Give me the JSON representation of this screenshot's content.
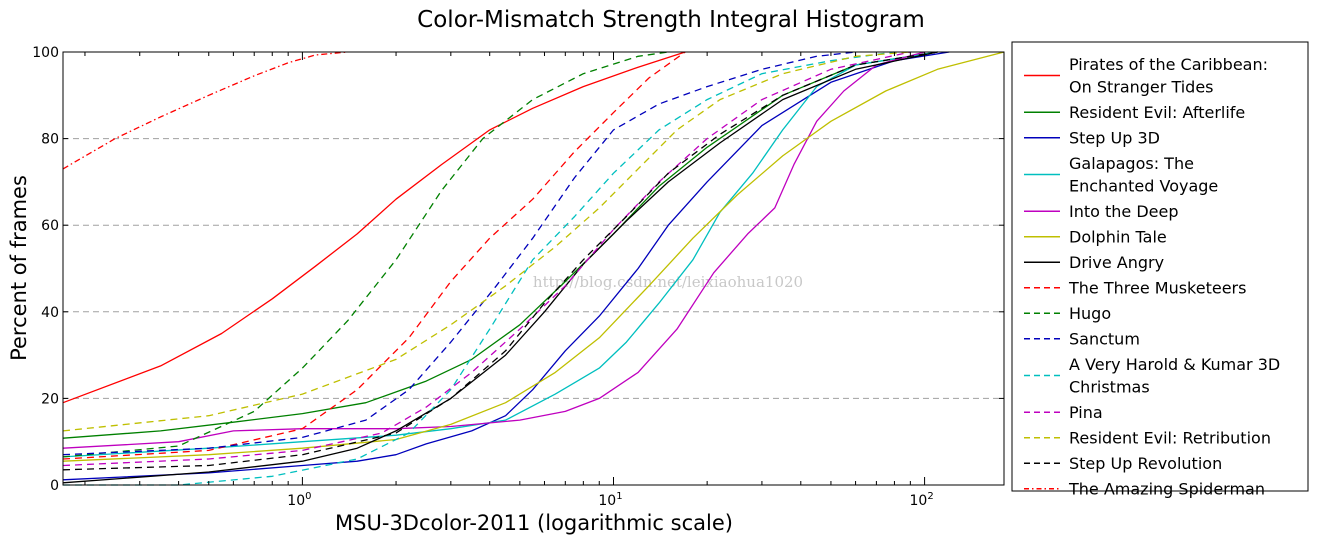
{
  "chart_data": {
    "type": "line",
    "title": "Color-Mismatch Strength Integral Histogram",
    "xlabel": "MSU-3Dcolor-2011 (logarithmic scale)",
    "ylabel": "Percent of frames",
    "x_scale": "log",
    "xlim": [
      0.17,
      180
    ],
    "ylim": [
      0,
      100
    ],
    "x_ticks": [
      {
        "value": 1,
        "label_base": "10",
        "label_exp": "0"
      },
      {
        "value": 10,
        "label_base": "10",
        "label_exp": "1"
      },
      {
        "value": 100,
        "label_base": "10",
        "label_exp": "2"
      }
    ],
    "y_ticks": [
      0,
      20,
      40,
      60,
      80,
      100
    ],
    "grid": "horizontal dashed",
    "legend_position": "right, outside plot",
    "watermark": "http://blog.csdn.net/leixiaohua1020",
    "series": [
      {
        "name": "Pirates of the Caribbean: On Stranger Tides",
        "legend_lines": [
          "Pirates of the Caribbean:",
          "On Stranger Tides"
        ],
        "color": "#ff0000",
        "dash": "solid",
        "points": [
          [
            0.17,
            19
          ],
          [
            0.35,
            27.5
          ],
          [
            0.55,
            35
          ],
          [
            0.8,
            43
          ],
          [
            1.1,
            50.5
          ],
          [
            1.5,
            58
          ],
          [
            2.0,
            66
          ],
          [
            2.8,
            74
          ],
          [
            4.0,
            82
          ],
          [
            5.5,
            87
          ],
          [
            8.0,
            92
          ],
          [
            12,
            96.5
          ],
          [
            17,
            100
          ]
        ]
      },
      {
        "name": "Resident Evil: Afterlife",
        "legend_lines": [
          "Resident Evil: Afterlife"
        ],
        "color": "#008000",
        "dash": "solid",
        "points": [
          [
            0.17,
            10.8
          ],
          [
            0.35,
            12.5
          ],
          [
            0.6,
            14.5
          ],
          [
            1.0,
            16.5
          ],
          [
            1.6,
            19
          ],
          [
            2.5,
            24
          ],
          [
            3.5,
            29
          ],
          [
            5.0,
            37
          ],
          [
            7.0,
            47
          ],
          [
            10,
            58
          ],
          [
            14,
            69
          ],
          [
            20,
            78
          ],
          [
            35,
            90
          ],
          [
            60,
            97
          ],
          [
            110,
            100
          ]
        ]
      },
      {
        "name": "Step Up 3D",
        "legend_lines": [
          "Step Up 3D"
        ],
        "color": "#0000bb",
        "dash": "solid",
        "points": [
          [
            0.17,
            1.2
          ],
          [
            0.5,
            2.8
          ],
          [
            1.0,
            4.5
          ],
          [
            1.5,
            5.5
          ],
          [
            2.0,
            7.0
          ],
          [
            2.5,
            9.5
          ],
          [
            3.5,
            12.5
          ],
          [
            4.5,
            16
          ],
          [
            5.5,
            22
          ],
          [
            7.0,
            31
          ],
          [
            9.0,
            39
          ],
          [
            12,
            50
          ],
          [
            15,
            60
          ],
          [
            20,
            70
          ],
          [
            30,
            83
          ],
          [
            50,
            93
          ],
          [
            80,
            98
          ],
          [
            120,
            100
          ]
        ]
      },
      {
        "name": "Galapagos: The Enchanted Voyage",
        "legend_lines": [
          "Galapagos: The",
          "Enchanted Voyage"
        ],
        "color": "#00bfbf",
        "dash": "solid",
        "points": [
          [
            0.17,
            6.5
          ],
          [
            0.5,
            8.5
          ],
          [
            1.0,
            10
          ],
          [
            2.0,
            11.5
          ],
          [
            3.0,
            13
          ],
          [
            4.5,
            15
          ],
          [
            6.5,
            21
          ],
          [
            9.0,
            27
          ],
          [
            11,
            33
          ],
          [
            14,
            42
          ],
          [
            18,
            52
          ],
          [
            22,
            63
          ],
          [
            28,
            72
          ],
          [
            35,
            82
          ],
          [
            45,
            92
          ],
          [
            60,
            97
          ],
          [
            110,
            100
          ]
        ]
      },
      {
        "name": "Into the Deep",
        "legend_lines": [
          "Into the Deep"
        ],
        "color": "#bf00bf",
        "dash": "solid",
        "points": [
          [
            0.17,
            8.5
          ],
          [
            0.4,
            10
          ],
          [
            0.6,
            12.5
          ],
          [
            1.0,
            13
          ],
          [
            2.0,
            13
          ],
          [
            3.0,
            13.5
          ],
          [
            5.0,
            15
          ],
          [
            7.0,
            17
          ],
          [
            9.0,
            20
          ],
          [
            12,
            26
          ],
          [
            16,
            36
          ],
          [
            21,
            49
          ],
          [
            27,
            58
          ],
          [
            33,
            64
          ],
          [
            38,
            74
          ],
          [
            45,
            84
          ],
          [
            55,
            91
          ],
          [
            70,
            97
          ],
          [
            100,
            100
          ]
        ]
      },
      {
        "name": "Dolphin Tale",
        "legend_lines": [
          "Dolphin Tale"
        ],
        "color": "#bfbf00",
        "dash": "solid",
        "points": [
          [
            0.17,
            5.5
          ],
          [
            0.5,
            7
          ],
          [
            1.0,
            8.5
          ],
          [
            2.0,
            10.5
          ],
          [
            3.0,
            14
          ],
          [
            4.5,
            19
          ],
          [
            6.5,
            26
          ],
          [
            9.0,
            34
          ],
          [
            13,
            46
          ],
          [
            18,
            57
          ],
          [
            25,
            67
          ],
          [
            35,
            76
          ],
          [
            50,
            84
          ],
          [
            75,
            91
          ],
          [
            110,
            96
          ],
          [
            180,
            100
          ]
        ]
      },
      {
        "name": "Drive Angry",
        "legend_lines": [
          "Drive Angry"
        ],
        "color": "#000000",
        "dash": "solid",
        "points": [
          [
            0.17,
            0.5
          ],
          [
            0.5,
            3.0
          ],
          [
            1.0,
            5.5
          ],
          [
            1.5,
            8.5
          ],
          [
            2.0,
            12.5
          ],
          [
            3.0,
            20
          ],
          [
            4.5,
            30
          ],
          [
            6.0,
            40
          ],
          [
            8.0,
            51
          ],
          [
            11,
            61
          ],
          [
            15,
            70
          ],
          [
            22,
            79
          ],
          [
            35,
            89
          ],
          [
            60,
            96
          ],
          [
            110,
            100
          ]
        ]
      },
      {
        "name": "The Three Musketeers",
        "legend_lines": [
          "The Three Musketeers"
        ],
        "color": "#ff0000",
        "dash": "dashed",
        "points": [
          [
            0.17,
            6
          ],
          [
            0.5,
            8
          ],
          [
            1.0,
            13
          ],
          [
            1.5,
            22
          ],
          [
            2.2,
            34
          ],
          [
            3.0,
            47
          ],
          [
            4.0,
            57
          ],
          [
            5.5,
            66
          ],
          [
            7.5,
            77
          ],
          [
            10,
            86
          ],
          [
            13,
            94
          ],
          [
            17,
            100
          ]
        ]
      },
      {
        "name": "Hugo",
        "legend_lines": [
          "Hugo"
        ],
        "color": "#008000",
        "dash": "dashed",
        "points": [
          [
            0.17,
            6.5
          ],
          [
            0.4,
            9
          ],
          [
            0.7,
            17
          ],
          [
            1.0,
            27
          ],
          [
            1.4,
            38
          ],
          [
            2.0,
            52
          ],
          [
            2.8,
            68
          ],
          [
            3.8,
            80
          ],
          [
            5.5,
            89
          ],
          [
            8.0,
            95
          ],
          [
            12,
            99
          ],
          [
            15,
            100
          ]
        ]
      },
      {
        "name": "Sanctum",
        "legend_lines": [
          "Sanctum"
        ],
        "color": "#0000bb",
        "dash": "dashed",
        "points": [
          [
            0.17,
            7
          ],
          [
            0.5,
            8.5
          ],
          [
            1.0,
            11
          ],
          [
            1.6,
            15
          ],
          [
            2.2,
            22
          ],
          [
            3.0,
            33
          ],
          [
            4.2,
            46
          ],
          [
            5.5,
            57
          ],
          [
            7.5,
            71
          ],
          [
            10,
            82
          ],
          [
            14,
            88
          ],
          [
            20,
            92
          ],
          [
            30,
            96
          ],
          [
            45,
            99
          ],
          [
            60,
            100
          ]
        ]
      },
      {
        "name": "A Very Harold & Kumar 3D Christmas",
        "legend_lines": [
          "A Very Harold & Kumar 3D",
          "Christmas"
        ],
        "color": "#00bfbf",
        "dash": "dashed",
        "points": [
          [
            0.17,
            0
          ],
          [
            0.4,
            0
          ],
          [
            0.8,
            2
          ],
          [
            1.5,
            6
          ],
          [
            2.2,
            12
          ],
          [
            3.0,
            22
          ],
          [
            4.0,
            36
          ],
          [
            5.5,
            52
          ],
          [
            7.5,
            62
          ],
          [
            10,
            72
          ],
          [
            14,
            82
          ],
          [
            20,
            89
          ],
          [
            30,
            95
          ],
          [
            50,
            98
          ],
          [
            80,
            100
          ]
        ]
      },
      {
        "name": "Pina",
        "legend_lines": [
          "Pina"
        ],
        "color": "#bf00bf",
        "dash": "dashed",
        "points": [
          [
            0.17,
            4.5
          ],
          [
            0.5,
            6
          ],
          [
            1.0,
            8
          ],
          [
            1.8,
            12
          ],
          [
            2.5,
            18
          ],
          [
            3.5,
            26
          ],
          [
            5.0,
            36
          ],
          [
            7.0,
            46
          ],
          [
            10,
            59
          ],
          [
            14,
            70
          ],
          [
            20,
            80
          ],
          [
            30,
            89
          ],
          [
            50,
            96
          ],
          [
            90,
            100
          ]
        ]
      },
      {
        "name": "Resident Evil: Retribution",
        "legend_lines": [
          "Resident Evil: Retribution"
        ],
        "color": "#bfbf00",
        "dash": "dashed",
        "points": [
          [
            0.17,
            12.5
          ],
          [
            0.5,
            16
          ],
          [
            1.0,
            21
          ],
          [
            2.0,
            29
          ],
          [
            3.0,
            37
          ],
          [
            4.5,
            46
          ],
          [
            6.5,
            55
          ],
          [
            9.0,
            64
          ],
          [
            12,
            73
          ],
          [
            16,
            82
          ],
          [
            22,
            89
          ],
          [
            35,
            95
          ],
          [
            60,
            99
          ],
          [
            90,
            100
          ]
        ]
      },
      {
        "name": "Step Up Revolution",
        "legend_lines": [
          "Step Up Revolution"
        ],
        "color": "#000000",
        "dash": "dashed",
        "points": [
          [
            0.17,
            3.5
          ],
          [
            0.5,
            4.5
          ],
          [
            1.0,
            7
          ],
          [
            2.0,
            12
          ],
          [
            3.0,
            20
          ],
          [
            4.5,
            31
          ],
          [
            6.0,
            42
          ],
          [
            8.0,
            52
          ],
          [
            11,
            62
          ],
          [
            15,
            72
          ],
          [
            22,
            81
          ],
          [
            35,
            90
          ],
          [
            60,
            97
          ],
          [
            110,
            100
          ]
        ]
      },
      {
        "name": "The Amazing Spiderman",
        "legend_lines": [
          "The Amazing Spiderman"
        ],
        "color": "#ff0000",
        "dash": "dashdot",
        "points": [
          [
            0.17,
            73
          ],
          [
            0.25,
            80
          ],
          [
            0.35,
            85
          ],
          [
            0.5,
            90
          ],
          [
            0.7,
            94.5
          ],
          [
            0.9,
            97.5
          ],
          [
            1.1,
            99.3
          ],
          [
            1.4,
            100
          ]
        ]
      }
    ]
  }
}
